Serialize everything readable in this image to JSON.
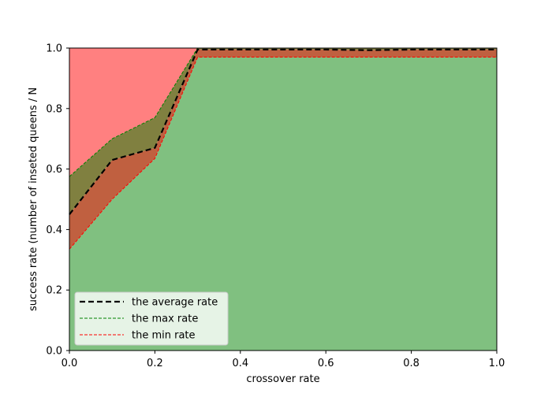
{
  "chart_data": {
    "type": "area",
    "title": "",
    "xlabel": "crossover rate",
    "ylabel": "success rate (number of inseted queens / N",
    "xlim": [
      0.0,
      1.0
    ],
    "ylim": [
      0.0,
      1.0
    ],
    "x_ticks": [
      0.0,
      0.2,
      0.4,
      0.6,
      0.8,
      1.0
    ],
    "x_tick_labels": [
      "0.0",
      "0.2",
      "0.4",
      "0.6",
      "0.8",
      "1.0"
    ],
    "y_ticks": [
      0.0,
      0.2,
      0.4,
      0.6,
      0.8,
      1.0
    ],
    "y_tick_labels": [
      "0.0",
      "0.2",
      "0.4",
      "0.6",
      "0.8",
      "1.0"
    ],
    "grid": false,
    "legend_position": "bottom-left",
    "x": [
      0.0,
      0.1,
      0.2,
      0.3,
      0.4,
      0.5,
      0.6,
      0.7,
      0.8,
      0.9,
      1.0
    ],
    "series": [
      {
        "name": "the average rate",
        "values": [
          0.45,
          0.63,
          0.67,
          0.995,
          0.995,
          0.995,
          0.995,
          0.993,
          0.995,
          0.995,
          0.995
        ],
        "color": "#000000",
        "style": "dashed-thick"
      },
      {
        "name": "the max rate",
        "values": [
          0.575,
          0.7,
          0.77,
          1.0,
          1.0,
          1.0,
          1.0,
          1.0,
          1.0,
          1.0,
          1.0
        ],
        "color": "#008000",
        "style": "dashed-thin"
      },
      {
        "name": "the min rate",
        "values": [
          0.335,
          0.5,
          0.635,
          0.97,
          0.97,
          0.97,
          0.97,
          0.97,
          0.97,
          0.97,
          0.97
        ],
        "color": "#ff0000",
        "style": "dashed-thin"
      }
    ],
    "fill_colors": {
      "below_min": "#80c080",
      "min_to_avg": "#c06040",
      "avg_to_max": "#808040",
      "above_max": "#ff8080"
    }
  }
}
